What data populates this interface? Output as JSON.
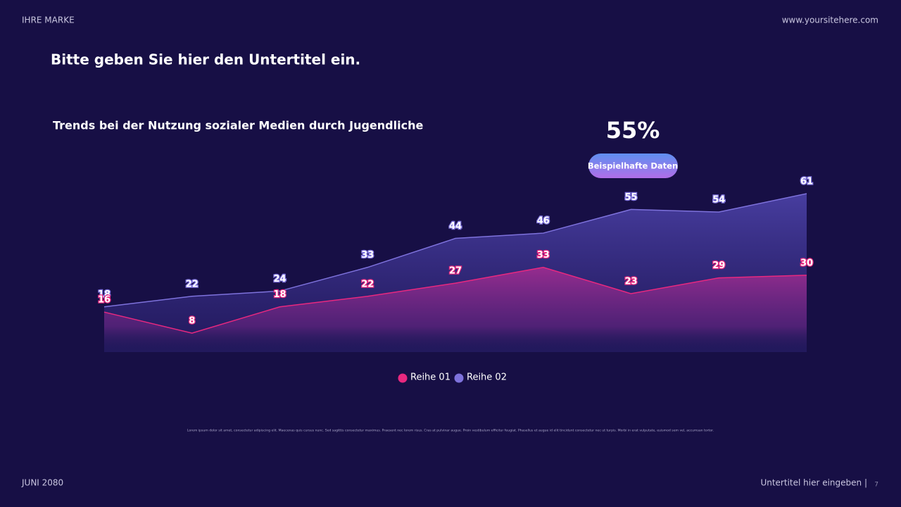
{
  "header": {
    "brand": "IHRE MARKE",
    "website": "www.yoursitehere.com",
    "subtitle": "Bitte geben Sie hier den Untertitel ein."
  },
  "callout": {
    "text": "55%",
    "badge": "Beispielhafte Daten"
  },
  "chart_data": {
    "type": "area",
    "title": "Trends bei der Nutzung sozialer Medien durch Jugendliche",
    "categories": [
      null,
      null,
      null,
      null,
      null,
      null,
      null,
      null,
      null
    ],
    "series": [
      {
        "name": "Reihe 01",
        "color": "#e8287f",
        "values": [
          16,
          8,
          18,
          22,
          27,
          33,
          23,
          29,
          30
        ]
      },
      {
        "name": "Reihe 02",
        "color": "#7e72dc",
        "values": [
          18,
          22,
          24,
          33,
          44,
          46,
          55,
          54,
          61
        ]
      }
    ],
    "legend": "bottom"
  },
  "body_text": "Lorem ipsum dolor sit amet, consectetur adipiscing elit. Maecenas quis cursus nunc. Sed sagittis consectetur maximus. Praesent nec lorem risus. Cras at pulvinar augue. Proin vestibulum efficitur feugiat. Phasellus et augue id elit tincidunt consectetur nec ut turpis. Morbi in erat vulputate, euismod sem vel, accumsan tortor.",
  "footer": {
    "date": "JUNI 2080",
    "subtitle": "Untertitel hier eingeben |",
    "page": "7"
  }
}
